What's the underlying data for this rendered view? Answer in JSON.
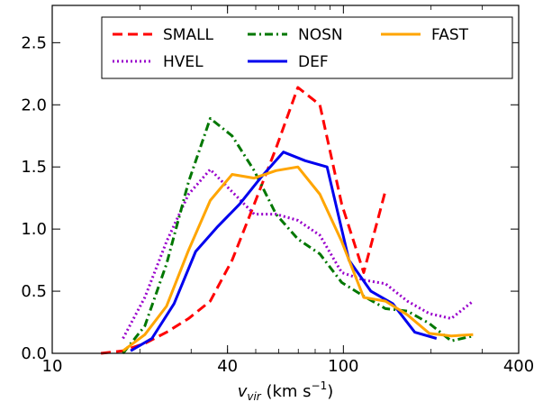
{
  "chart_data": {
    "type": "line",
    "xscale": "log",
    "xlim": [
      10,
      400
    ],
    "ylim": [
      0,
      2.8
    ],
    "xticks": [
      {
        "value": 10,
        "label": "10"
      },
      {
        "value": 40,
        "label": "40"
      },
      {
        "value": 100,
        "label": "100"
      },
      {
        "value": 400,
        "label": "400"
      }
    ],
    "yticks": [
      {
        "value": 0.0,
        "label": "0.0"
      },
      {
        "value": 0.5,
        "label": "0.5"
      },
      {
        "value": 1.0,
        "label": "1.0"
      },
      {
        "value": 1.5,
        "label": "1.5"
      },
      {
        "value": 2.0,
        "label": "2.0"
      },
      {
        "value": 2.5,
        "label": "2.5"
      }
    ],
    "xlabel": "v",
    "xlabel_sub": "vir",
    "xlabel_units": " (km s",
    "xlabel_sup": "−1",
    "xlabel_close": ")",
    "ylabel": "",
    "grid": false,
    "legend_position": "top-right",
    "series": [
      {
        "name": "SMALL",
        "color": "#ff0000",
        "dash": "dashed",
        "x": [
          14.7,
          17.5,
          20.8,
          24.7,
          29.4,
          34.9,
          41.5,
          49.4,
          58.7,
          69.8,
          83.0,
          98.7,
          117.4,
          139.5
        ],
        "y": [
          0.0,
          0.02,
          0.08,
          0.17,
          0.28,
          0.42,
          0.75,
          1.2,
          1.65,
          2.14,
          2.0,
          1.2,
          0.65,
          1.31
        ]
      },
      {
        "name": "HVEL",
        "color": "#9900cc",
        "dash": "dotted",
        "x": [
          17.5,
          20.8,
          24.7,
          29.4,
          34.9,
          41.5,
          49.4,
          58.7,
          69.8,
          83.0,
          98.7,
          117.4,
          139.5,
          165.9,
          197.3,
          234.6,
          279.0
        ],
        "y": [
          0.12,
          0.45,
          0.9,
          1.28,
          1.48,
          1.3,
          1.12,
          1.12,
          1.07,
          0.95,
          0.65,
          0.59,
          0.56,
          0.42,
          0.32,
          0.28,
          0.42
        ]
      },
      {
        "name": "NOSN",
        "color": "#007700",
        "dash": "dashdot",
        "x": [
          17.5,
          20.8,
          24.7,
          29.4,
          34.9,
          41.5,
          49.4,
          58.7,
          69.8,
          83.0,
          98.7,
          117.4,
          139.5,
          165.9,
          197.3,
          234.6,
          279.0
        ],
        "y": [
          0.0,
          0.22,
          0.72,
          1.38,
          1.89,
          1.75,
          1.47,
          1.12,
          0.92,
          0.8,
          0.57,
          0.46,
          0.36,
          0.34,
          0.24,
          0.1,
          0.14
        ]
      },
      {
        "name": "DEF",
        "color": "#0000ee",
        "dash": "solid",
        "x": [
          18.6,
          22.0,
          26.2,
          31.1,
          37.0,
          44.0,
          52.3,
          62.2,
          73.9,
          87.9,
          104.5,
          124.3,
          147.8,
          175.8,
          209.0
        ],
        "y": [
          0.02,
          0.12,
          0.4,
          0.82,
          1.02,
          1.2,
          1.42,
          1.62,
          1.55,
          1.5,
          0.75,
          0.5,
          0.4,
          0.17,
          0.12
        ]
      },
      {
        "name": "FAST",
        "color": "#ffa500",
        "dash": "solid",
        "x": [
          17.5,
          20.8,
          24.7,
          29.4,
          34.9,
          41.5,
          49.4,
          58.7,
          69.8,
          83.0,
          98.7,
          117.4,
          139.5,
          165.9,
          197.3,
          234.6,
          279.0
        ],
        "y": [
          0.02,
          0.15,
          0.38,
          0.83,
          1.23,
          1.44,
          1.41,
          1.47,
          1.5,
          1.28,
          0.9,
          0.45,
          0.42,
          0.31,
          0.16,
          0.14,
          0.15
        ]
      }
    ]
  }
}
